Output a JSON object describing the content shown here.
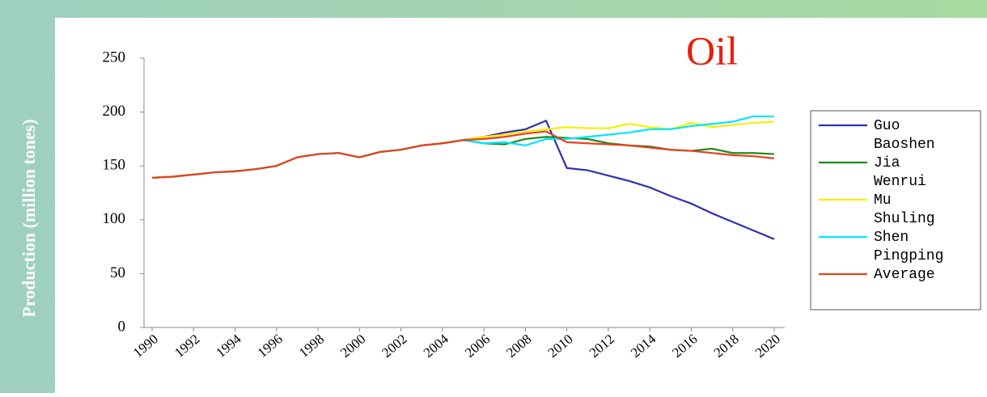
{
  "chart_data": {
    "type": "line",
    "title": "Oil",
    "y_label": "Production (million tones)",
    "x": [
      1990,
      1991,
      1992,
      1993,
      1994,
      1995,
      1996,
      1997,
      1998,
      1999,
      2000,
      2001,
      2002,
      2003,
      2004,
      2005,
      2006,
      2007,
      2008,
      2009,
      2010,
      2011,
      2012,
      2013,
      2014,
      2015,
      2016,
      2017,
      2018,
      2019,
      2020
    ],
    "xlim": [
      1990,
      2020
    ],
    "xticks": [
      1990,
      1992,
      1994,
      1996,
      1998,
      2000,
      2002,
      2004,
      2006,
      2008,
      2010,
      2012,
      2014,
      2016,
      2018,
      2020
    ],
    "ylim": [
      0,
      250
    ],
    "yticks": [
      0,
      50,
      100,
      150,
      200,
      250
    ],
    "legend": "right",
    "series": [
      {
        "name": "Guo Baoshen",
        "color": "#3030b0",
        "values": [
          139,
          140,
          142,
          144,
          145,
          147,
          150,
          158,
          161,
          162,
          158,
          163,
          165,
          169,
          171,
          174,
          177,
          181,
          184,
          192,
          148,
          146,
          141,
          136,
          130,
          122,
          115,
          106,
          98,
          90,
          82
        ]
      },
      {
        "name": "Jia Wenrui",
        "color": "#1e8a1e",
        "values": [
          139,
          140,
          142,
          144,
          145,
          147,
          150,
          158,
          161,
          162,
          158,
          163,
          165,
          169,
          171,
          174,
          171,
          170,
          175,
          177,
          176,
          175,
          171,
          169,
          168,
          165,
          164,
          166,
          162,
          162,
          161
        ]
      },
      {
        "name": "Mu Shuling",
        "color": "#f5f000",
        "values": [
          139,
          140,
          142,
          144,
          145,
          147,
          150,
          158,
          161,
          162,
          158,
          163,
          165,
          169,
          171,
          174,
          177,
          179,
          182,
          184,
          186,
          185,
          185,
          189,
          186,
          184,
          190,
          186,
          188,
          190,
          191
        ]
      },
      {
        "name": "Shen Pingping",
        "color": "#00e5ff",
        "values": [
          139,
          140,
          142,
          144,
          145,
          147,
          150,
          158,
          161,
          162,
          158,
          163,
          165,
          169,
          171,
          174,
          171,
          172,
          169,
          175,
          175,
          177,
          179,
          181,
          184,
          184,
          187,
          189,
          191,
          196,
          196
        ]
      },
      {
        "name": "Average",
        "color": "#e8401c",
        "values": [
          139,
          140,
          142,
          144,
          145,
          147,
          150,
          158,
          161,
          162,
          158,
          163,
          165,
          169,
          171,
          174,
          175,
          177,
          180,
          182,
          172,
          171,
          170,
          169,
          167,
          165,
          164,
          162,
          160,
          159,
          157
        ]
      }
    ]
  }
}
